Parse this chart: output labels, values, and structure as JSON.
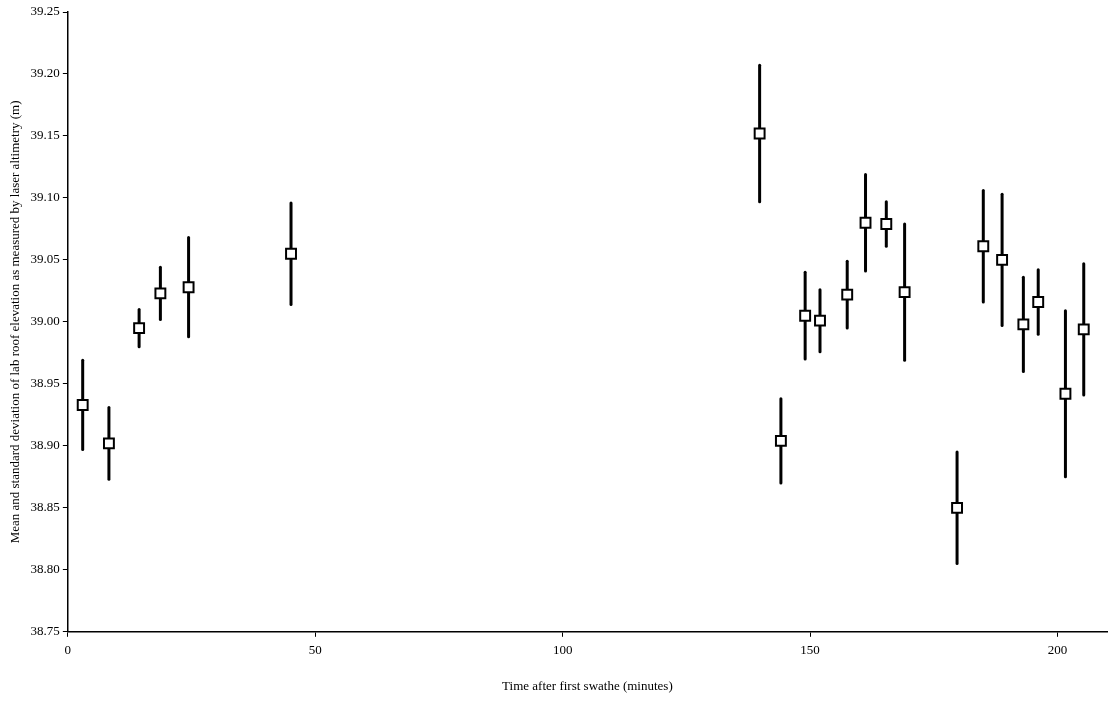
{
  "chart_data": {
    "type": "scatter",
    "xlabel": "Time after first swathe (minutes)",
    "ylabel": "Mean and standard deviation of lab roof elevation as measured by laser altimetry (m)",
    "x": [
      3.0,
      8.3,
      14.4,
      18.7,
      24.4,
      45.1,
      139.8,
      144.1,
      149.0,
      152.0,
      157.5,
      161.2,
      165.4,
      169.1,
      179.7,
      185.0,
      188.8,
      193.1,
      196.1,
      201.6,
      205.3
    ],
    "values": [
      38.933,
      38.902,
      38.995,
      39.023,
      39.028,
      39.055,
      39.152,
      38.904,
      39.005,
      39.001,
      39.022,
      39.08,
      39.079,
      39.024,
      38.85,
      39.061,
      39.05,
      38.998,
      39.016,
      38.942,
      38.994
    ],
    "errors": [
      0.036,
      0.029,
      0.015,
      0.021,
      0.04,
      0.041,
      0.055,
      0.034,
      0.035,
      0.025,
      0.027,
      0.039,
      0.018,
      0.055,
      0.045,
      0.045,
      0.053,
      0.038,
      0.026,
      0.067,
      0.053
    ],
    "color": "#ffffff",
    "marker": "square",
    "grid": false,
    "legend": false,
    "xlim": [
      0,
      210
    ],
    "xticks": [
      0,
      50,
      100,
      150,
      200
    ],
    "ylim": [
      38.75,
      39.25
    ],
    "yticks": [
      38.75,
      {
        "value": 38.8,
        "label": "38.80"
      },
      38.85,
      {
        "value": 38.9,
        "label": "38.90"
      },
      38.95,
      {
        "value": 39,
        "label": "39.00"
      },
      39.05,
      {
        "value": 39.1,
        "label": "39.10"
      },
      39.15,
      {
        "value": 39.2,
        "label": "39.20"
      },
      39.25
    ]
  }
}
